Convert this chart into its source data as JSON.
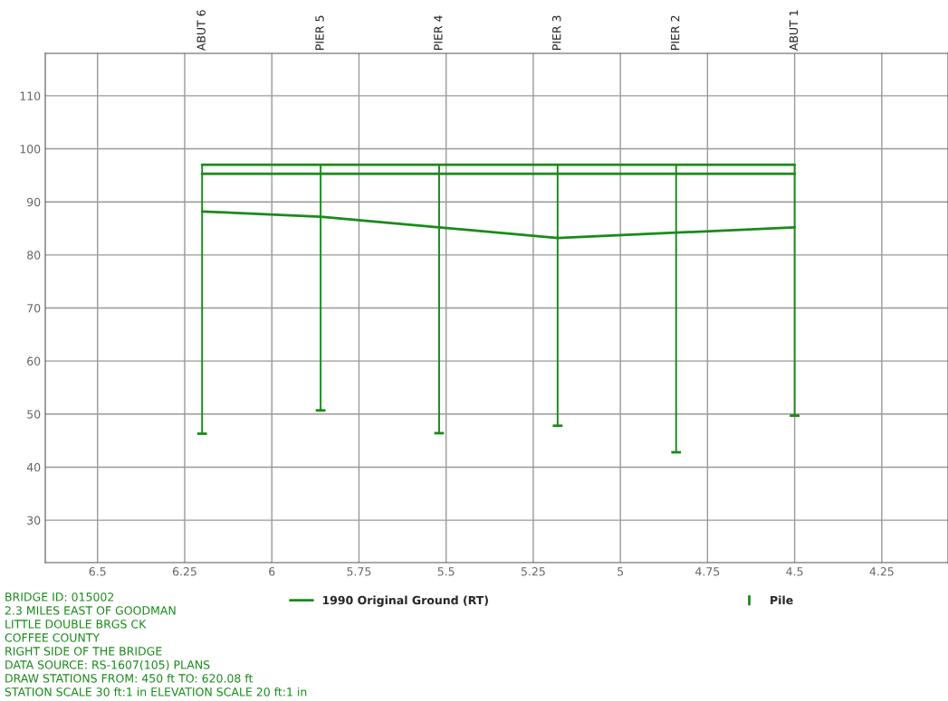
{
  "chart_data": {
    "type": "line",
    "xlim": [
      6.65,
      4.06
    ],
    "xticks": [
      6.5,
      6.25,
      6,
      5.75,
      5.5,
      5.25,
      5,
      4.75,
      4.5,
      4.25
    ],
    "ylim": [
      22,
      118
    ],
    "yticks": [
      30,
      40,
      50,
      60,
      70,
      80,
      90,
      100,
      110
    ],
    "grid": true,
    "legend": "bottom",
    "series": [
      {
        "color": "#1a8a1a",
        "x": [
          6.2,
          4.5
        ],
        "values": [
          97,
          97
        ]
      },
      {
        "color": "#1a8a1a",
        "x": [
          6.2,
          4.5
        ],
        "values": [
          95.3,
          95.3
        ]
      },
      {
        "name": "1990 Original Ground (RT)",
        "color": "#1a8a1a",
        "x": [
          6.2,
          5.86,
          5.52,
          5.18,
          4.84,
          4.5
        ],
        "values": [
          88.2,
          87.2,
          85.2,
          83.2,
          84.2,
          85.2
        ]
      },
      {
        "type": "bar",
        "name": "Pile",
        "color": "#1a8a1a",
        "x": [
          6.2,
          5.86,
          5.52,
          5.18,
          4.84,
          4.5
        ],
        "base": [
          46.3,
          50.7,
          46.4,
          47.8,
          42.8,
          49.7
        ],
        "values": [
          50.7,
          46.3,
          50.6,
          49.2,
          54.2,
          47.3
        ]
      }
    ],
    "annotations": [
      "ABUT 6",
      "PIER 5",
      "PIER 4",
      "PIER 3",
      "PIER 2",
      "ABUT 1",
      "BRIDGE ID: 015002",
      "2.3 MILES EAST OF GOODMAN",
      "LITTLE DOUBLE BRGS CK",
      "COFFEE COUNTY",
      "RIGHT SIDE OF THE BRIDGE",
      "DATA SOURCE: RS-1607(105) PLANS",
      "DRAW STATIONS FROM: 450 ft TO: 620.08 ft",
      "STATION SCALE 30 ft:1 in ELEVATION SCALE 20 ft:1 in"
    ]
  }
}
